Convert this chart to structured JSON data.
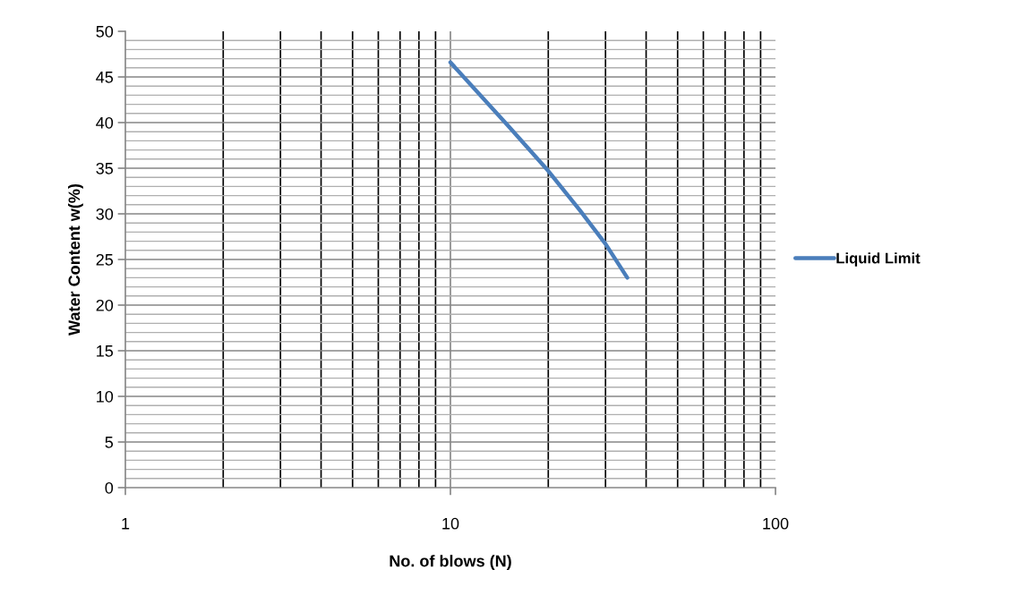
{
  "chart_data": {
    "type": "line",
    "xlabel": "No. of blows (N)",
    "ylabel": "Water Content w(%)",
    "log": "x",
    "xlim": [
      1,
      100
    ],
    "xticks": [
      1,
      10,
      100
    ],
    "ylim": [
      0,
      50
    ],
    "yticks": [
      0,
      5,
      10,
      15,
      20,
      25,
      30,
      35,
      40,
      45,
      50
    ],
    "grid": true,
    "legend": "right",
    "marker": "none",
    "line_style": "solid",
    "series": [
      {
        "name": "Liquid Limit",
        "color": "#4a7ebb",
        "x": [
          10,
          15,
          20,
          25,
          30,
          35
        ],
        "values": [
          46.6,
          39.7,
          34.7,
          30.4,
          26.7,
          23.0
        ]
      }
    ]
  }
}
